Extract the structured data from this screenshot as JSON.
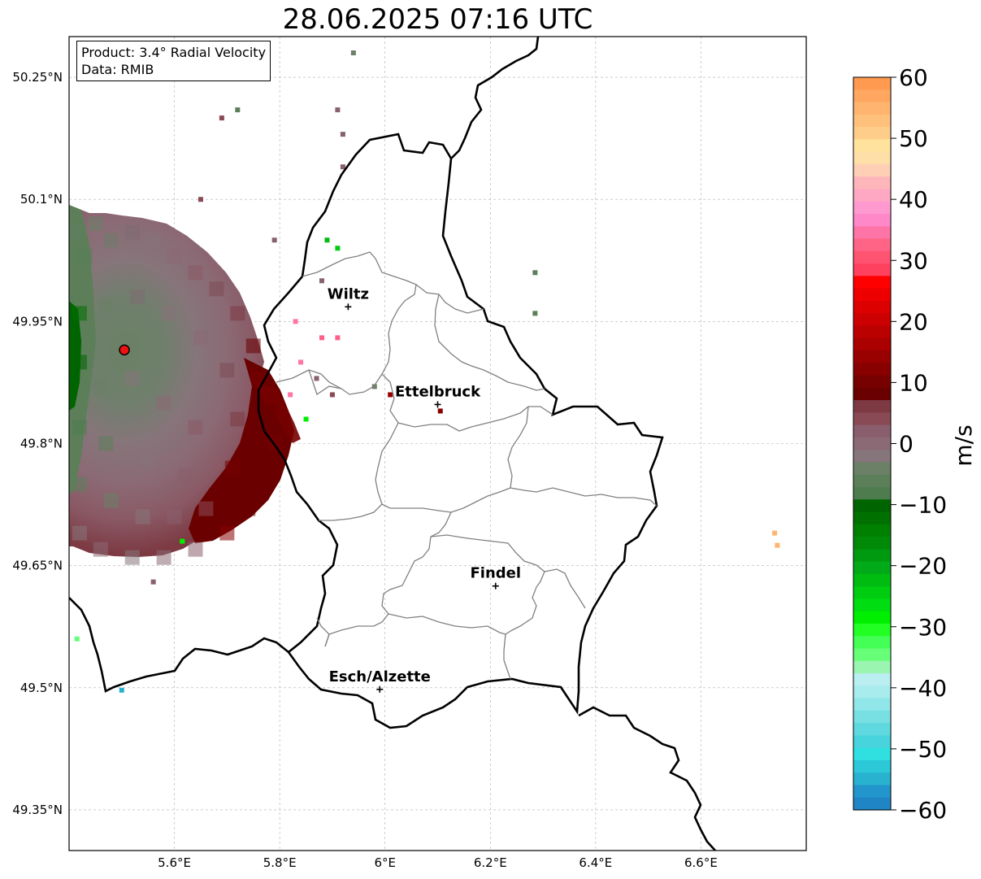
{
  "title": "28.06.2025 07:16 UTC",
  "info": {
    "product_line": "Product: 3.4° Radial Velocity",
    "data_line": "Data: RMIB"
  },
  "axes": {
    "lon_ticks": [
      {
        "value": 5.6,
        "label": "5.6°E"
      },
      {
        "value": 5.8,
        "label": "5.8°E"
      },
      {
        "value": 6.0,
        "label": "6°E"
      },
      {
        "value": 6.2,
        "label": "6.2°E"
      },
      {
        "value": 6.4,
        "label": "6.4°E"
      },
      {
        "value": 6.6,
        "label": "6.6°E"
      }
    ],
    "lat_ticks": [
      {
        "value": 50.25,
        "label": "50.25°N"
      },
      {
        "value": 50.1,
        "label": "50.1°N"
      },
      {
        "value": 49.95,
        "label": "49.95°N"
      },
      {
        "value": 49.8,
        "label": "49.8°N"
      },
      {
        "value": 49.65,
        "label": "49.65°N"
      },
      {
        "value": 49.5,
        "label": "49.5°N"
      },
      {
        "value": 49.35,
        "label": "49.35°N"
      }
    ],
    "lon_range": [
      5.4,
      6.8
    ],
    "lat_range": [
      49.3,
      50.3
    ],
    "grid": true
  },
  "cities": [
    {
      "name": "Wiltz",
      "lon": 5.93,
      "lat": 49.968
    },
    {
      "name": "Ettelbruck",
      "lon": 6.1,
      "lat": 49.848
    },
    {
      "name": "Findel",
      "lon": 6.21,
      "lat": 49.625
    },
    {
      "name": "Esch/Alzette",
      "lon": 5.99,
      "lat": 49.498
    }
  ],
  "radar_site": {
    "lon": 5.505,
    "lat": 49.915,
    "color": "#ee1111"
  },
  "colorbar": {
    "unit": "m/s",
    "min": -60,
    "max": 60,
    "tick_labels": [
      "60",
      "50",
      "40",
      "30",
      "20",
      "10",
      "0",
      "−10",
      "−20",
      "−30",
      "−40",
      "−50",
      "−60"
    ],
    "bands_top_to_bottom": [
      "#ff9a50",
      "#ffa761",
      "#ffb56f",
      "#ffc07c",
      "#ffcd8a",
      "#ffe39c",
      "#ffdfa8",
      "#ffcfb5",
      "#ffb6ba",
      "#ffa8c4",
      "#ff9ad0",
      "#ff88c9",
      "#ff74a6",
      "#ff6487",
      "#ff5372",
      "#ff4160",
      "#ff0000",
      "#ee0000",
      "#dd0000",
      "#cc0000",
      "#bb0000",
      "#aa0000",
      "#990000",
      "#880000",
      "#770000",
      "#6a0000",
      "#7d3a43",
      "#8a4a55",
      "#8b5e6d",
      "#8b6a75",
      "#86757a",
      "#6b8066",
      "#5c7f59",
      "#4e7c4e",
      "#006400",
      "#007000",
      "#008000",
      "#008a08",
      "#009a10",
      "#00aa18",
      "#00bb10",
      "#00cc10",
      "#00dd10",
      "#00ee00",
      "#22ff22",
      "#44ff55",
      "#66ff77",
      "#99f5b0",
      "#bbeef0",
      "#a8ecee",
      "#90e6e8",
      "#78e0e3",
      "#60d8e0",
      "#48d4dc",
      "#30e0e0",
      "#2cc8d8",
      "#28b2d0",
      "#2296cc",
      "#1f85c4"
    ]
  },
  "radar_cells": [
    {
      "lon": 5.41,
      "lat": 50.06,
      "c": "#5f8060"
    },
    {
      "lon": 5.43,
      "lat": 50.03,
      "c": "#5a7d58"
    },
    {
      "lon": 5.45,
      "lat": 50.07,
      "c": "#6b8066"
    },
    {
      "lon": 5.48,
      "lat": 50.05,
      "c": "#6d7a6a"
    },
    {
      "lon": 5.52,
      "lat": 50.06,
      "c": "#7e6c73"
    },
    {
      "lon": 5.56,
      "lat": 50.05,
      "c": "#86727a"
    },
    {
      "lon": 5.6,
      "lat": 50.03,
      "c": "#8b6a75"
    },
    {
      "lon": 5.64,
      "lat": 50.01,
      "c": "#8a5a66"
    },
    {
      "lon": 5.68,
      "lat": 49.99,
      "c": "#7d4a55"
    },
    {
      "lon": 5.72,
      "lat": 49.96,
      "c": "#7d3a43"
    },
    {
      "lon": 5.75,
      "lat": 49.92,
      "c": "#6a0000"
    },
    {
      "lon": 5.76,
      "lat": 49.88,
      "c": "#770000"
    },
    {
      "lon": 5.78,
      "lat": 49.84,
      "c": "#6a0000"
    },
    {
      "lon": 5.79,
      "lat": 49.8,
      "c": "#770000"
    },
    {
      "lon": 5.78,
      "lat": 49.76,
      "c": "#6a0000"
    },
    {
      "lon": 5.74,
      "lat": 49.72,
      "c": "#6a0000"
    },
    {
      "lon": 5.7,
      "lat": 49.69,
      "c": "#880000"
    },
    {
      "lon": 5.64,
      "lat": 49.67,
      "c": "#8b5e6d"
    },
    {
      "lon": 5.58,
      "lat": 49.66,
      "c": "#8b6a75"
    },
    {
      "lon": 5.52,
      "lat": 49.66,
      "c": "#86757a"
    },
    {
      "lon": 5.46,
      "lat": 49.67,
      "c": "#8b6a75"
    },
    {
      "lon": 5.42,
      "lat": 49.69,
      "c": "#86757a"
    },
    {
      "lon": 5.42,
      "lat": 49.75,
      "c": "#5c7f59"
    },
    {
      "lon": 5.42,
      "lat": 49.82,
      "c": "#4e7c4e"
    },
    {
      "lon": 5.42,
      "lat": 49.9,
      "c": "#006400"
    },
    {
      "lon": 5.42,
      "lat": 49.96,
      "c": "#007000"
    },
    {
      "lon": 5.47,
      "lat": 49.97,
      "c": "#6b8066"
    },
    {
      "lon": 5.53,
      "lat": 49.98,
      "c": "#7e6c73"
    },
    {
      "lon": 5.59,
      "lat": 49.96,
      "c": "#86727a"
    },
    {
      "lon": 5.65,
      "lat": 49.93,
      "c": "#8b6a75"
    },
    {
      "lon": 5.7,
      "lat": 49.89,
      "c": "#7d4a55"
    },
    {
      "lon": 5.72,
      "lat": 49.83,
      "c": "#7d3a43"
    },
    {
      "lon": 5.71,
      "lat": 49.77,
      "c": "#770000"
    },
    {
      "lon": 5.66,
      "lat": 49.72,
      "c": "#8a4a55"
    },
    {
      "lon": 5.6,
      "lat": 49.71,
      "c": "#8b5e6d"
    },
    {
      "lon": 5.54,
      "lat": 49.71,
      "c": "#86757a"
    },
    {
      "lon": 5.48,
      "lat": 49.73,
      "c": "#6b8066"
    },
    {
      "lon": 5.47,
      "lat": 49.8,
      "c": "#5c7f59"
    },
    {
      "lon": 5.46,
      "lat": 49.87,
      "c": "#6b8066"
    },
    {
      "lon": 5.52,
      "lat": 49.88,
      "c": "#86757a"
    },
    {
      "lon": 5.58,
      "lat": 49.85,
      "c": "#8b6a75"
    },
    {
      "lon": 5.64,
      "lat": 49.82,
      "c": "#8a5a66"
    },
    {
      "lon": 5.62,
      "lat": 49.76,
      "c": "#8b5e6d"
    },
    {
      "lon": 5.55,
      "lat": 49.78,
      "c": "#86727a"
    }
  ],
  "scatter_points": [
    {
      "lon": 6.01,
      "lat": 49.86,
      "c": "#990000"
    },
    {
      "lon": 6.105,
      "lat": 49.84,
      "c": "#880000"
    },
    {
      "lon": 5.88,
      "lat": 49.93,
      "c": "#ff5f8a"
    },
    {
      "lon": 5.91,
      "lat": 49.93,
      "c": "#ff5f8a"
    },
    {
      "lon": 5.83,
      "lat": 49.95,
      "c": "#ff74a6"
    },
    {
      "lon": 5.89,
      "lat": 50.05,
      "c": "#00bb10"
    },
    {
      "lon": 5.91,
      "lat": 50.04,
      "c": "#00cc10"
    },
    {
      "lon": 5.88,
      "lat": 50.0,
      "c": "#886070"
    },
    {
      "lon": 6.285,
      "lat": 50.01,
      "c": "#5c7f59"
    },
    {
      "lon": 6.285,
      "lat": 49.96,
      "c": "#5c7f59"
    },
    {
      "lon": 5.94,
      "lat": 50.28,
      "c": "#6b8066"
    },
    {
      "lon": 5.91,
      "lat": 50.21,
      "c": "#886070"
    },
    {
      "lon": 5.92,
      "lat": 50.18,
      "c": "#886070"
    },
    {
      "lon": 5.72,
      "lat": 50.21,
      "c": "#5c7f59"
    },
    {
      "lon": 5.69,
      "lat": 50.2,
      "c": "#8a4a55"
    },
    {
      "lon": 5.92,
      "lat": 50.14,
      "c": "#886070"
    },
    {
      "lon": 5.65,
      "lat": 50.1,
      "c": "#8a4a55"
    },
    {
      "lon": 5.79,
      "lat": 50.05,
      "c": "#886070"
    },
    {
      "lon": 6.74,
      "lat": 49.69,
      "c": "#ffb56f"
    },
    {
      "lon": 6.745,
      "lat": 49.675,
      "c": "#ffb56f"
    },
    {
      "lon": 5.415,
      "lat": 49.56,
      "c": "#66ff77"
    },
    {
      "lon": 5.5,
      "lat": 49.497,
      "c": "#28b2d0"
    },
    {
      "lon": 5.56,
      "lat": 49.63,
      "c": "#886070"
    },
    {
      "lon": 5.615,
      "lat": 49.68,
      "c": "#00ee00"
    },
    {
      "lon": 5.98,
      "lat": 49.87,
      "c": "#6b8066"
    },
    {
      "lon": 5.87,
      "lat": 49.88,
      "c": "#886070"
    },
    {
      "lon": 5.9,
      "lat": 49.86,
      "c": "#8a4a55"
    },
    {
      "lon": 5.85,
      "lat": 49.83,
      "c": "#00ee00"
    },
    {
      "lon": 5.82,
      "lat": 49.86,
      "c": "#ff74a6"
    },
    {
      "lon": 5.84,
      "lat": 49.9,
      "c": "#ff74a6"
    }
  ]
}
